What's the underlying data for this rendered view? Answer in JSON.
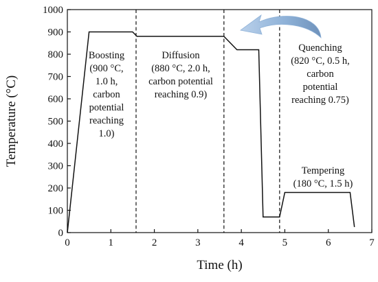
{
  "chart_data": {
    "type": "line",
    "xlabel": "Time (h)",
    "ylabel": "Temperature (°C)",
    "xlim": [
      0,
      7
    ],
    "ylim": [
      0,
      1000
    ],
    "xticks": [
      0,
      1,
      2,
      3,
      4,
      5,
      6,
      7
    ],
    "yticks": [
      0,
      100,
      200,
      300,
      400,
      500,
      600,
      700,
      800,
      900,
      1000
    ],
    "grid": false,
    "series": [
      {
        "x": [
          0.0,
          0.5,
          1.5,
          1.6,
          3.6,
          3.9,
          4.4,
          4.5,
          4.88,
          5.0,
          6.5,
          6.6
        ],
        "y": [
          0,
          900,
          900,
          880,
          880,
          820,
          820,
          70,
          70,
          180,
          180,
          25
        ]
      }
    ],
    "dividers_x": [
      1.58,
      3.6,
      4.88
    ],
    "annotations": [
      {
        "id": "boosting",
        "lines": [
          "Boosting",
          "(900 °C,",
          "1.0 h,",
          "carbon",
          "potential",
          "reaching",
          "1.0)"
        ]
      },
      {
        "id": "diffusion",
        "lines": [
          "Diffusion",
          "(880 °C, 2.0 h,",
          "carbon potential",
          "reaching 0.9)"
        ]
      },
      {
        "id": "quenching",
        "lines": [
          "Quenching",
          "(820 °C, 0.5 h,",
          "carbon",
          "potential",
          "reaching 0.75)"
        ]
      },
      {
        "id": "tempering",
        "lines": [
          "Tempering",
          "(180 °C, 1.5 h)"
        ]
      }
    ],
    "arrow_color": "#8fb2d8"
  }
}
